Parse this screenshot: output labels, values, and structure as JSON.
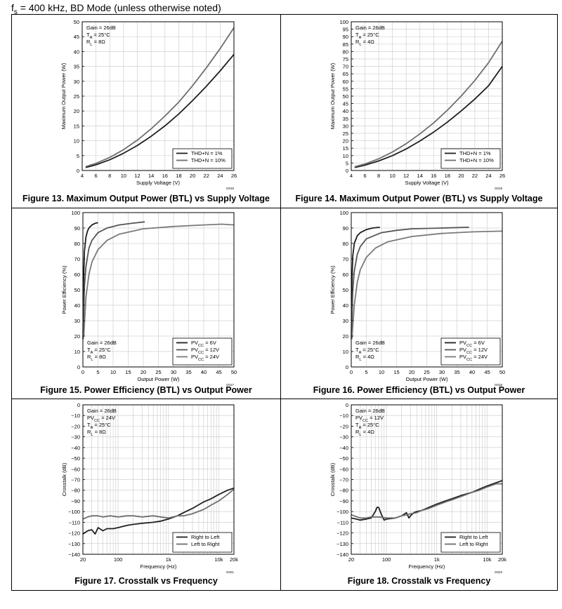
{
  "header": {
    "fs_symbol": "f",
    "fs_sub": "s",
    "text": " = 400 kHz, BD Mode (unless otherwise noted)"
  },
  "colors": {
    "dark": "#1f1f1f",
    "medium": "#5a5a5a",
    "light": "#7a7a7a",
    "grid": "#d0d0d0"
  },
  "chart_data": [
    {
      "id": "fig13",
      "type": "line",
      "title": "Figure 13. Maximum Output Power (BTL) vs Supply Voltage",
      "xlabel": "Supply Voltage (V)",
      "ylabel": "Maximum Output Power (W)",
      "xlim": [
        4,
        26
      ],
      "ylim": [
        0,
        50
      ],
      "xticks": [
        4,
        6,
        8,
        10,
        12,
        14,
        16,
        18,
        20,
        22,
        24,
        26
      ],
      "yticks": [
        0,
        5,
        10,
        15,
        20,
        25,
        30,
        35,
        40,
        45,
        50
      ],
      "xscale": "linear",
      "grid": true,
      "conditions": [
        "Gain = 26dB",
        "T_A = 25°C",
        "R_L = 8Ω"
      ],
      "code": "G015",
      "legend": {
        "position": "bottom-right"
      },
      "series": [
        {
          "name": "THD+N = 1%",
          "color": "#1f1f1f",
          "x": [
            4.5,
            6,
            8,
            10,
            12,
            14,
            16,
            18,
            20,
            22,
            24,
            26
          ],
          "y": [
            1.0,
            1.9,
            3.6,
            5.8,
            8.4,
            11.5,
            15.0,
            19.0,
            23.5,
            28.3,
            33.5,
            39.0
          ]
        },
        {
          "name": "THD+N = 10%",
          "color": "#6e6e6e",
          "x": [
            4.5,
            6,
            8,
            10,
            12,
            14,
            16,
            18,
            20,
            22,
            24,
            26
          ],
          "y": [
            1.3,
            2.4,
            4.4,
            7.0,
            10.2,
            14.0,
            18.3,
            23.0,
            28.5,
            34.5,
            41.0,
            48.0
          ]
        }
      ]
    },
    {
      "id": "fig14",
      "type": "line",
      "title": "Figure 14. Maximum Output Power (BTL) vs Supply Voltage",
      "xlabel": "Supply Voltage (V)",
      "ylabel": "Maximum Output Power (W)",
      "xlim": [
        4,
        26
      ],
      "ylim": [
        0,
        100
      ],
      "xticks": [
        4,
        6,
        8,
        10,
        12,
        14,
        16,
        18,
        20,
        22,
        24,
        26
      ],
      "yticks": [
        0,
        5,
        10,
        15,
        20,
        25,
        30,
        35,
        40,
        45,
        50,
        55,
        60,
        65,
        70,
        75,
        80,
        85,
        90,
        95,
        100
      ],
      "xscale": "linear",
      "grid": true,
      "conditions": [
        "Gain = 26dB",
        "T_A = 25°C",
        "R_L = 4Ω"
      ],
      "code": "G016",
      "legend": {
        "position": "bottom-right"
      },
      "series": [
        {
          "name": "THD+N = 1%",
          "color": "#1f1f1f",
          "x": [
            4.5,
            6,
            8,
            10,
            12,
            14,
            16,
            18,
            20,
            22,
            24,
            26
          ],
          "y": [
            2.0,
            3.6,
            6.4,
            10.0,
            14.5,
            19.8,
            25.8,
            32.5,
            40.0,
            48.0,
            57.0,
            70.0
          ]
        },
        {
          "name": "THD+N = 10%",
          "color": "#6e6e6e",
          "x": [
            4.5,
            6,
            8,
            10,
            12,
            14,
            16,
            18,
            20,
            22,
            24,
            26
          ],
          "y": [
            2.5,
            4.4,
            7.9,
            12.4,
            18.0,
            24.6,
            32.0,
            40.5,
            50.0,
            60.5,
            72.5,
            87.0
          ]
        }
      ]
    },
    {
      "id": "fig15",
      "type": "line",
      "title": "Figure 15. Power Efficiency (BTL) vs Output Power",
      "xlabel": "Output Power (W)",
      "ylabel": "Power Efficiency (%)",
      "xlim": [
        0,
        50
      ],
      "ylim": [
        0,
        100
      ],
      "xticks": [
        0,
        5,
        10,
        15,
        20,
        25,
        30,
        35,
        40,
        45,
        50
      ],
      "yticks": [
        0,
        10,
        20,
        30,
        40,
        50,
        60,
        70,
        80,
        90,
        100
      ],
      "xscale": "linear",
      "grid": true,
      "conditions": [
        "Gain = 26dB",
        "T_A = 25°C",
        "R_L = 8Ω"
      ],
      "code": "G017",
      "legend": {
        "position": "bottom-right"
      },
      "series": [
        {
          "name": "PV_CC = 6V",
          "color": "#1f1f1f",
          "x": [
            0.05,
            0.2,
            0.5,
            1,
            1.5,
            2,
            3,
            4,
            5
          ],
          "y": [
            18,
            55,
            75,
            84,
            88,
            90,
            92,
            93,
            93.5
          ]
        },
        {
          "name": "PV_CC = 12V",
          "color": "#555555",
          "x": [
            0.1,
            0.5,
            1,
            2,
            3,
            5,
            8,
            12,
            16,
            20.5
          ],
          "y": [
            20,
            52,
            65,
            77,
            82,
            87,
            90,
            92,
            93,
            94
          ]
        },
        {
          "name": "PV_CC = 24V",
          "color": "#7a7a7a",
          "x": [
            0.3,
            1,
            2,
            3,
            5,
            8,
            12,
            20,
            30,
            40,
            46,
            50
          ],
          "y": [
            20,
            45,
            60,
            68,
            76,
            82,
            86,
            89.5,
            91,
            92,
            92.5,
            92
          ]
        }
      ]
    },
    {
      "id": "fig16",
      "type": "line",
      "title": "Figure 16. Power Efficiency (BTL) vs Output Power",
      "xlabel": "Output Power (W)",
      "ylabel": "Power Efficiency (%)",
      "xlim": [
        0,
        50
      ],
      "ylim": [
        0,
        100
      ],
      "xticks": [
        0,
        5,
        10,
        15,
        20,
        25,
        30,
        35,
        40,
        45,
        50
      ],
      "yticks": [
        0,
        10,
        20,
        30,
        40,
        50,
        60,
        70,
        80,
        90,
        100
      ],
      "xscale": "linear",
      "grid": true,
      "conditions": [
        "Gain = 26dB",
        "T_A = 25°C",
        "R_L = 4Ω"
      ],
      "code": "G018",
      "legend": {
        "position": "bottom-right"
      },
      "series": [
        {
          "name": "PV_CC = 6V",
          "color": "#1f1f1f",
          "x": [
            0.05,
            0.2,
            0.5,
            1,
            2,
            3,
            5,
            7,
            9.5
          ],
          "y": [
            18,
            55,
            72,
            80,
            85,
            87,
            89,
            90,
            90.5
          ]
        },
        {
          "name": "PV_CC = 12V",
          "color": "#555555",
          "x": [
            0.1,
            0.5,
            1,
            2,
            3,
            5,
            10,
            15,
            20,
            30,
            39
          ],
          "y": [
            20,
            50,
            62,
            73,
            78,
            83,
            87,
            88.5,
            89.5,
            90,
            90.5
          ]
        },
        {
          "name": "PV_CC = 24V",
          "color": "#7a7a7a",
          "x": [
            0.2,
            1,
            2,
            3,
            5,
            8,
            12,
            20,
            30,
            40,
            50
          ],
          "y": [
            18,
            40,
            55,
            63,
            71,
            77,
            81,
            84.5,
            86.5,
            87.5,
            88
          ]
        }
      ]
    },
    {
      "id": "fig17",
      "type": "line",
      "title": "Figure 17. Crosstalk vs Frequency",
      "xlabel": "Frequency (Hz)",
      "ylabel": "Crosstalk (dB)",
      "xlim": [
        20,
        20000
      ],
      "ylim": [
        -140,
        0
      ],
      "xticks": [
        20,
        100,
        1000,
        10000,
        20000
      ],
      "xticklabels": [
        "20",
        "100",
        "1k",
        "10k",
        "20k"
      ],
      "yticks": [
        0,
        -10,
        -20,
        -30,
        -40,
        -50,
        -60,
        -70,
        -80,
        -90,
        -100,
        -110,
        -120,
        -130,
        -140
      ],
      "xscale": "log",
      "grid": true,
      "conditions": [
        "Gain = 26dB",
        "PV_CC = 24V",
        "T_A = 25°C",
        "R_L = 8Ω"
      ],
      "code": "G021",
      "legend": {
        "position": "bottom-right"
      },
      "series": [
        {
          "name": "Right to Left",
          "color": "#1f1f1f",
          "x": [
            20,
            25,
            30,
            35,
            40,
            50,
            60,
            80,
            100,
            150,
            200,
            300,
            500,
            700,
            1000,
            1500,
            2000,
            3000,
            5000,
            7000,
            10000,
            15000,
            20000
          ],
          "y": [
            -121,
            -118,
            -117,
            -121,
            -115,
            -118,
            -116,
            -116,
            -115,
            -113,
            -112,
            -111,
            -110,
            -109,
            -107,
            -104,
            -101,
            -97,
            -91,
            -88,
            -84,
            -80,
            -78
          ]
        },
        {
          "name": "Left to Right",
          "color": "#6e6e6e",
          "x": [
            20,
            25,
            30,
            40,
            50,
            70,
            100,
            150,
            200,
            300,
            500,
            700,
            1000,
            1500,
            2000,
            3000,
            5000,
            7000,
            10000,
            15000,
            20000
          ],
          "y": [
            -107,
            -105,
            -104,
            -104,
            -105,
            -104,
            -105,
            -104,
            -104,
            -105,
            -104,
            -105,
            -106,
            -104,
            -104,
            -102,
            -98,
            -94,
            -90,
            -84,
            -79
          ]
        }
      ]
    },
    {
      "id": "fig18",
      "type": "line",
      "title": "Figure 18. Crosstalk vs Frequency",
      "xlabel": "Frequency (Hz)",
      "ylabel": "Crosstalk (dB)",
      "xlim": [
        20,
        20000
      ],
      "ylim": [
        -140,
        0
      ],
      "xticks": [
        20,
        100,
        1000,
        10000,
        20000
      ],
      "xticklabels": [
        "20",
        "100",
        "1k",
        "10k",
        "20k"
      ],
      "yticks": [
        0,
        -10,
        -20,
        -30,
        -40,
        -50,
        -60,
        -70,
        -80,
        -90,
        -100,
        -110,
        -120,
        -130,
        -140
      ],
      "xscale": "log",
      "grid": true,
      "conditions": [
        "Gain = 26dB",
        "PV_CC = 12V",
        "T_A = 25°C",
        "R_L = 4Ω"
      ],
      "code": "G022",
      "legend": {
        "position": "bottom-right"
      },
      "series": [
        {
          "name": "Right to Left",
          "color": "#1f1f1f",
          "x": [
            20,
            25,
            30,
            40,
            50,
            60,
            65,
            70,
            80,
            90,
            100,
            150,
            200,
            250,
            280,
            300,
            350,
            400,
            500,
            700,
            1000,
            1500,
            2000,
            3000,
            5000,
            7000,
            10000,
            15000,
            20000
          ],
          "y": [
            -106,
            -107,
            -108,
            -107,
            -106,
            -100,
            -96,
            -96,
            -103,
            -108,
            -107,
            -106,
            -104,
            -101,
            -106,
            -104,
            -101,
            -100,
            -99,
            -96,
            -93,
            -90,
            -88,
            -85,
            -82,
            -79,
            -76,
            -73,
            -71
          ]
        },
        {
          "name": "Left to Right",
          "color": "#6e6e6e",
          "x": [
            20,
            30,
            40,
            50,
            70,
            100,
            150,
            200,
            250,
            300,
            400,
            500,
            700,
            1000,
            1500,
            2000,
            3000,
            5000,
            7000,
            10000,
            15000,
            20000
          ],
          "y": [
            -103,
            -106,
            -106,
            -105,
            -105,
            -106,
            -106,
            -104,
            -103,
            -102,
            -101,
            -99,
            -97,
            -94,
            -91,
            -89,
            -86,
            -82,
            -80,
            -77,
            -74,
            -74
          ]
        }
      ]
    }
  ]
}
